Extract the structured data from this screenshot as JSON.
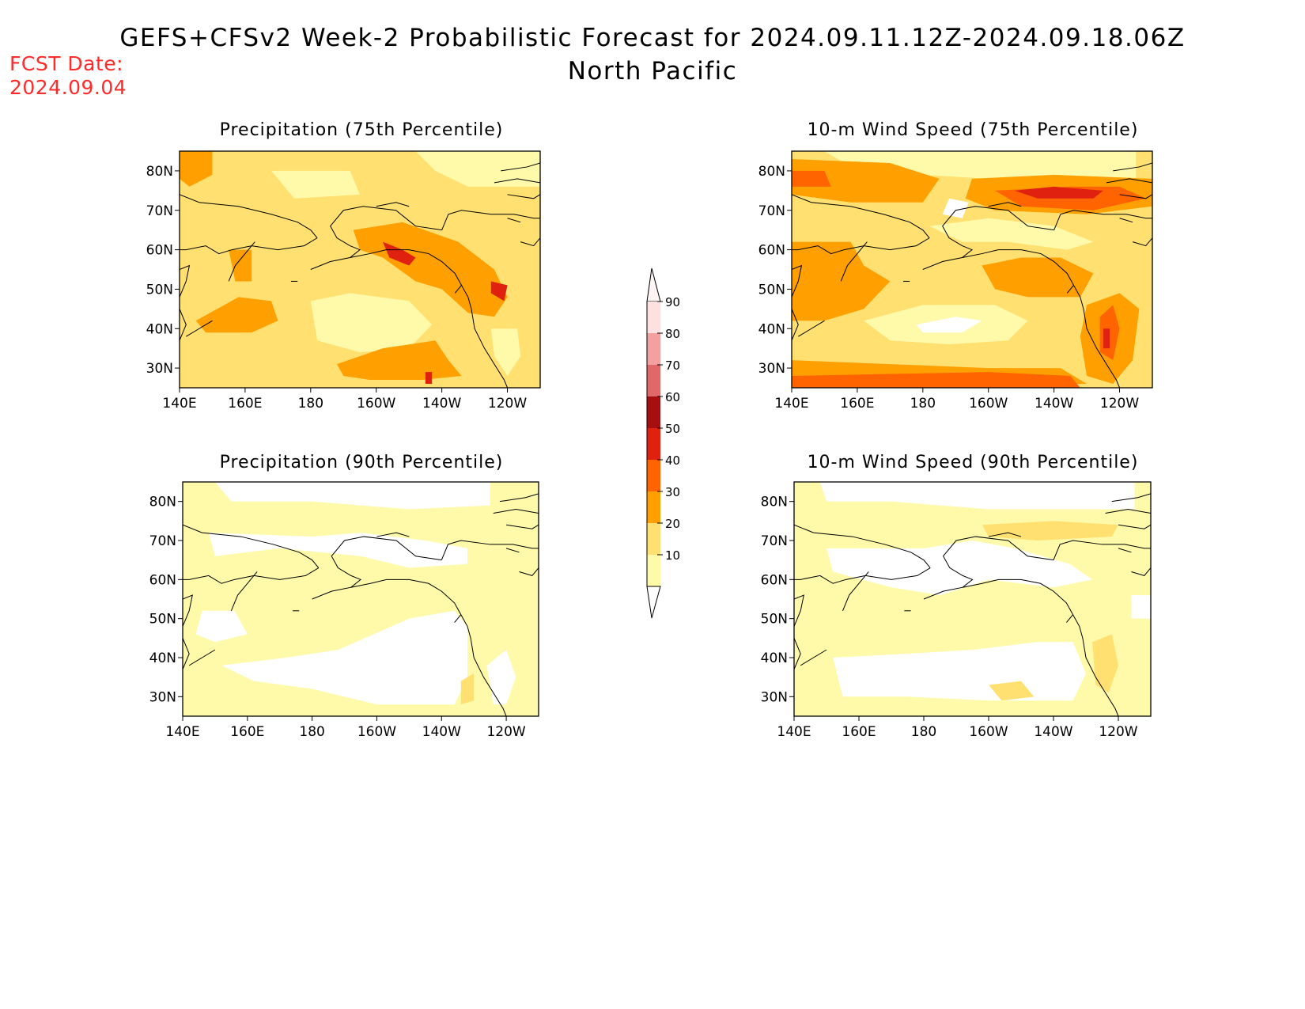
{
  "header": {
    "title": "GEFS+CFSv2 Week-2 Probabilistic Forecast for 2024.09.11.12Z-2024.09.18.06Z",
    "region": "North Pacific",
    "fcst_label": "FCST Date:",
    "fcst_date": "2024.09.04"
  },
  "axes": {
    "lat_labels": [
      "80N",
      "70N",
      "60N",
      "50N",
      "40N",
      "30N"
    ],
    "lon_labels": [
      "140E",
      "160E",
      "180",
      "160W",
      "140W",
      "120W"
    ]
  },
  "panels": [
    {
      "title": "Precipitation (75th Percentile)",
      "field": "precip-75"
    },
    {
      "title": "10-m Wind Speed (75th Percentile)",
      "field": "wind-75"
    },
    {
      "title": "Precipitation (90th Percentile)",
      "field": "precip-90"
    },
    {
      "title": "10-m Wind Speed (90th Percentile)",
      "field": "wind-90"
    }
  ],
  "colorbar": {
    "labels": [
      "90",
      "80",
      "70",
      "60",
      "50",
      "40",
      "30",
      "20",
      "10"
    ],
    "colors": [
      "#fde0e0",
      "#f2a0a0",
      "#e06868",
      "#a50f0f",
      "#e0210f",
      "#ff6400",
      "#ffa000",
      "#ffe070",
      "#fffaaa"
    ]
  }
}
